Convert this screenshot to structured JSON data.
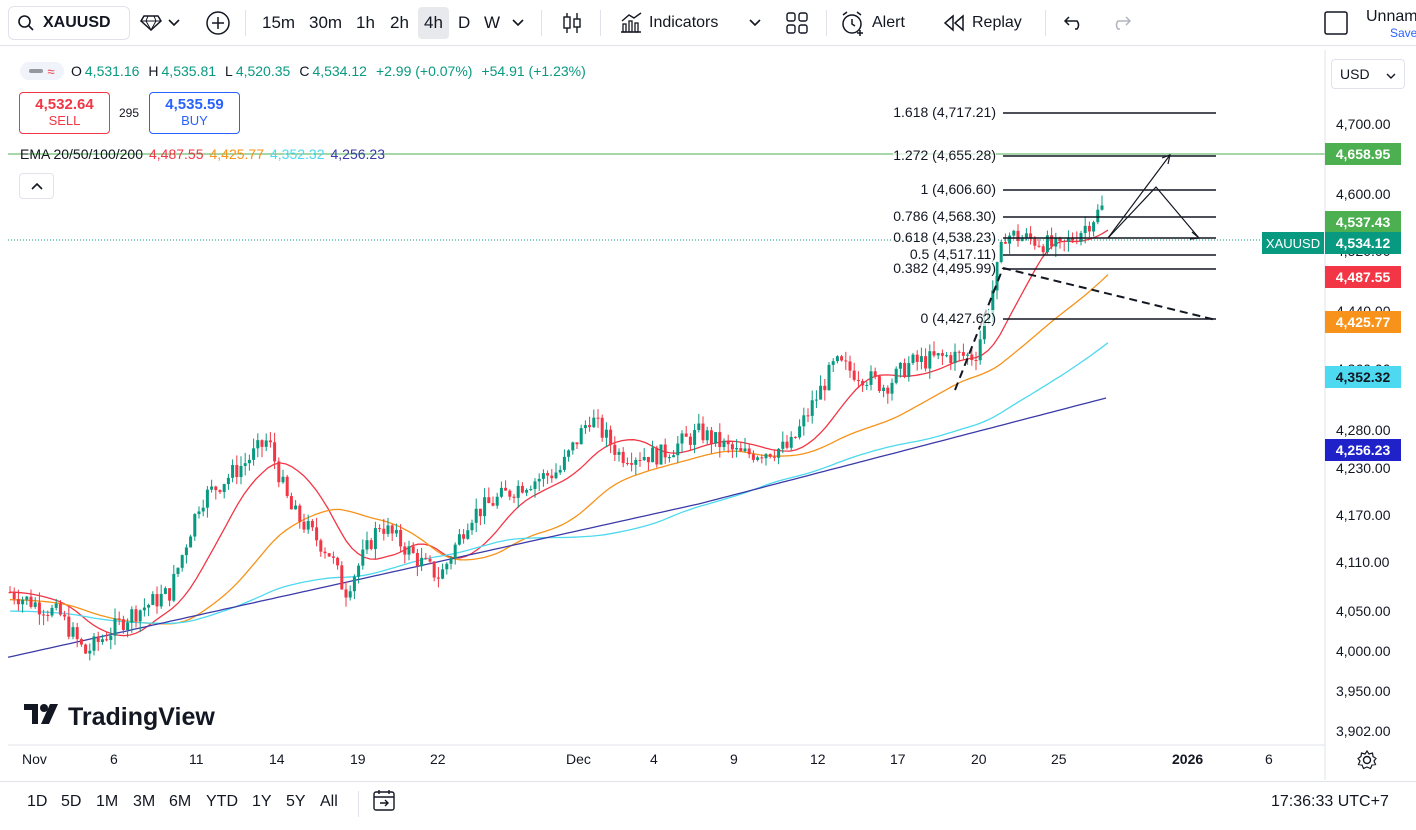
{
  "toolbar": {
    "symbol": "XAUUSD",
    "timeframes": [
      "15m",
      "30m",
      "1h",
      "2h",
      "4h",
      "D",
      "W"
    ],
    "active_timeframe": "4h",
    "indicators_label": "Indicators",
    "alert_label": "Alert",
    "replay_label": "Replay",
    "layout_name": "Unnam",
    "save_label": "Save"
  },
  "legend": {
    "open_key": "O",
    "open": "4,531.16",
    "high_key": "H",
    "high": "4,535.81",
    "low_key": "L",
    "low": "4,520.35",
    "close_key": "C",
    "close": "4,534.12",
    "change": "+2.99 (+0.07%)",
    "change2": "+54.91 (+1.23%)"
  },
  "trade": {
    "sell_price": "4,532.64",
    "sell_label": "SELL",
    "spread": "295",
    "buy_price": "4,535.59",
    "buy_label": "BUY"
  },
  "ema": {
    "label": "EMA 20/50/100/200",
    "v20": "4,487.55",
    "v50": "4,425.77",
    "v100": "4,352.32",
    "v200": "4,256.23"
  },
  "currency": "USD",
  "price_axis": [
    "4,700.00",
    "4,600.00",
    "4,520.00",
    "4,440.00",
    "4,360.00",
    "4,280.00",
    "4,230.00",
    "4,170.00",
    "4,110.00",
    "4,050.00",
    "4,000.00",
    "3,950.00",
    "3,902.00"
  ],
  "price_tags": {
    "t1": "4,658.95",
    "t2": "4,537.43",
    "t3": "4,534.12",
    "t4": "4,487.55",
    "t5": "4,425.77",
    "t6": "4,352.32",
    "t7": "4,256.23",
    "symbol_flag": "XAUUSD"
  },
  "fib_levels": [
    "1.618 (4,717.21)",
    "1.272 (4,655.28)",
    "1 (4,606.60)",
    "0.786 (4,568.30)",
    "0.618 (4,538.23)",
    "0.5 (4,517.11)",
    "0.382 (4,495.99)",
    "0 (4,427.62)"
  ],
  "time_axis": [
    "Nov",
    "6",
    "11",
    "14",
    "19",
    "22",
    "Dec",
    "4",
    "9",
    "12",
    "17",
    "20",
    "25",
    "2026",
    "6"
  ],
  "ranges": [
    "1D",
    "5D",
    "1M",
    "3M",
    "6M",
    "YTD",
    "1Y",
    "5Y",
    "All"
  ],
  "clock": "17:36:33 UTC+7",
  "brand": "TradingView",
  "colors": {
    "up": "#089981",
    "down": "#f23645",
    "ema20": "#f23645",
    "ema50": "#f7931a",
    "ema100": "#4dd9ef",
    "ema200": "#3a3aa8"
  }
}
